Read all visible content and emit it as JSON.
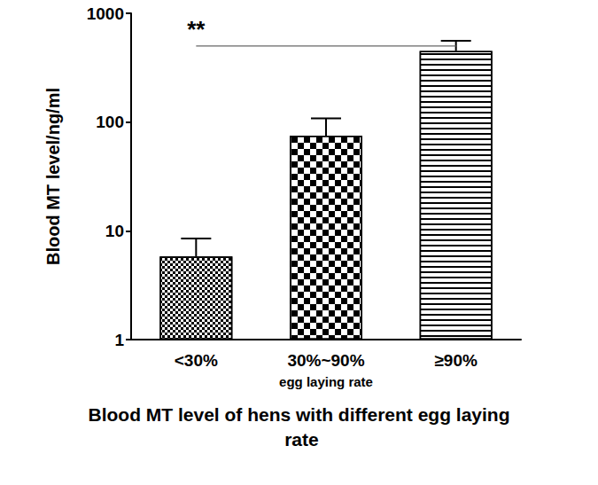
{
  "chart_data": {
    "type": "bar",
    "title": "Blood MT level of hens with different egg laying rate",
    "x_label": "egg laying rate",
    "y_label": "Blood MT level/ng/ml",
    "categories": [
      "<30%",
      "30%~90%",
      "≥90%"
    ],
    "values": [
      5.8,
      75,
      450
    ],
    "errors": [
      2.7,
      33,
      110
    ],
    "color": "#000000",
    "ylim": [
      1,
      1000
    ],
    "yticks": [
      1,
      10,
      100,
      1000
    ],
    "log": "y",
    "grid": false,
    "annotations": [
      {
        "text": "**",
        "from": "<30%",
        "to": "≥90%",
        "y": 500
      }
    ]
  }
}
